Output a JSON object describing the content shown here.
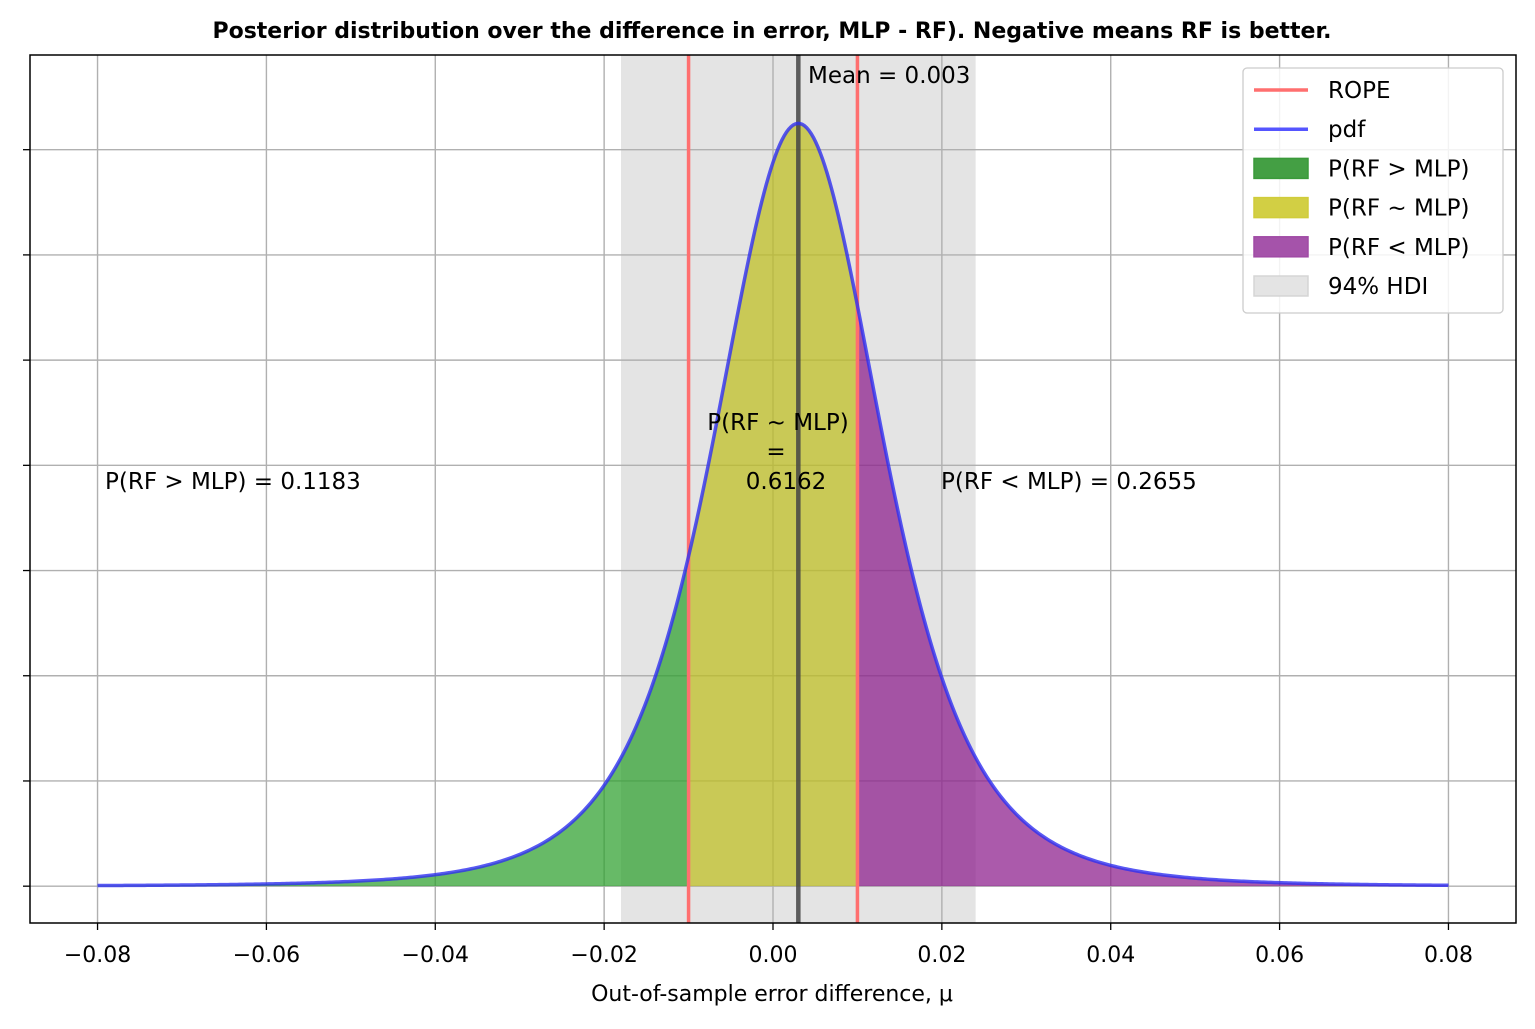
{
  "chart_data": {
    "type": "area",
    "title": "Posterior distribution over the difference in error, MLP - RF). Negative means RF is better.",
    "xlabel": "Out-of-sample error difference, μ",
    "ylabel": "",
    "xlim": [
      -0.088,
      0.088
    ],
    "ylim": [
      -0.014,
      0.316
    ],
    "x_ticks": [
      -0.08,
      -0.06,
      -0.04,
      -0.02,
      0.0,
      0.02,
      0.04,
      0.06,
      0.08
    ],
    "x_tick_labels": [
      "−0.08",
      "−0.06",
      "−0.04",
      "−0.02",
      "0.00",
      "0.02",
      "0.04",
      "0.06",
      "0.08"
    ],
    "y_ticks": [
      0.0,
      0.04,
      0.08,
      0.12,
      0.16,
      0.2,
      0.24,
      0.28
    ],
    "y_tick_labels_shown": false,
    "grid": true,
    "legend_position": "top-right",
    "pdf": {
      "distribution": "Student-t",
      "loc": 0.003,
      "scale": 0.0103,
      "df": 4,
      "x_range": [
        -0.08,
        0.08
      ],
      "peak_value": 0.29
    },
    "rope": [
      -0.01,
      0.01
    ],
    "mean": 0.003,
    "mean_label": "Mean = 0.003",
    "hdi": [
      -0.018,
      0.024
    ],
    "regions": [
      {
        "name": "P(RF > MLP)",
        "range": [
          -0.08,
          -0.01
        ],
        "color": "#2ca02c",
        "value": 0.1183
      },
      {
        "name": "P(RF ~ MLP)",
        "range": [
          -0.01,
          0.01
        ],
        "color": "#c8c31e",
        "value": 0.6162
      },
      {
        "name": "P(RF < MLP)",
        "range": [
          0.01,
          0.08
        ],
        "color": "#8b1a8b",
        "value": 0.2655
      }
    ],
    "annotations": {
      "left": "P(RF > MLP) = 0.1183",
      "middle": [
        "P(RF ~ MLP)",
        "=",
        "0.6162"
      ],
      "right": "P(RF < MLP) = 0.2655"
    },
    "legend": [
      {
        "label": "ROPE",
        "kind": "line",
        "color": "#ff6f6f"
      },
      {
        "label": "pdf",
        "kind": "line",
        "color": "#5555ff"
      },
      {
        "label": "P(RF > MLP)",
        "kind": "patch",
        "color": "#3a9a3a"
      },
      {
        "label": "P(RF ~ MLP)",
        "kind": "patch",
        "color": "#d0cc3a"
      },
      {
        "label": "P(RF < MLP)",
        "kind": "patch",
        "color": "#a04aa5"
      },
      {
        "label": "94% HDI",
        "kind": "patch",
        "color": "#e3e3e3"
      }
    ]
  }
}
